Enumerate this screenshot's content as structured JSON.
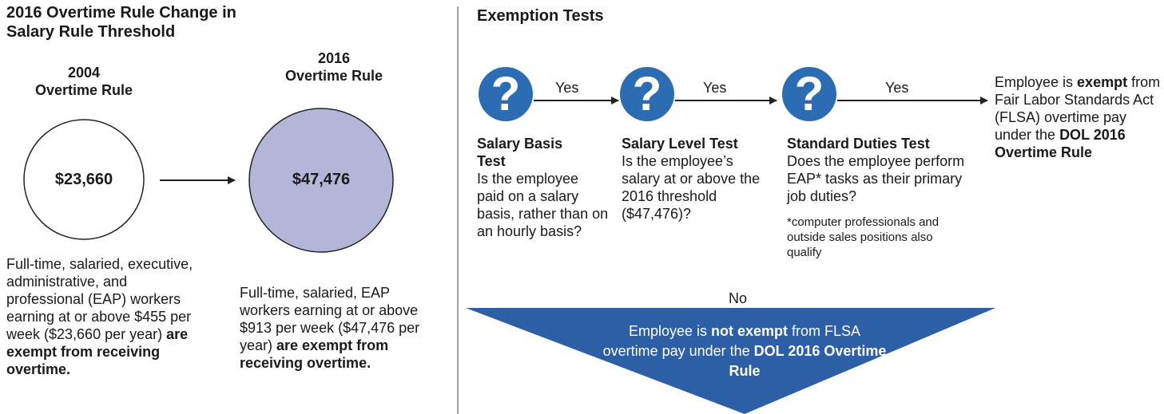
{
  "left": {
    "title": [
      "2016 Overtime Rule Change in",
      "Salary Rule Threshold"
    ],
    "rule_2004": {
      "year": "2004",
      "name": "Overtime Rule",
      "amount": "$23,660",
      "description": [
        {
          "text": "Full-time, salaried, executive, administrative, and professional (EAP) workers earning at or above $455 per week ($23,660 per year) ",
          "bold": false
        },
        {
          "text": "are exempt from receiving overtime.",
          "bold": true
        }
      ]
    },
    "rule_2016": {
      "year": "2016",
      "name": "Overtime Rule",
      "amount": "$47,476",
      "description": [
        {
          "text": "Full-time, salaried, EAP workers earning at or above $913 per week ($47,476 per year) ",
          "bold": false
        },
        {
          "text": "are exempt from receiving overtime.",
          "bold": true
        }
      ]
    }
  },
  "right": {
    "title": "Exemption Tests",
    "tests": [
      {
        "label": "Salary Basis Test",
        "question": "Is the employee paid on a salary basis, rather than on an hourly basis?",
        "arrow_label": "Yes"
      },
      {
        "label": "Salary Level Test",
        "question": "Is the employee’s salary at or above the 2016 threshold ($47,476)?",
        "arrow_label": "Yes"
      },
      {
        "label": "Standard Duties Test",
        "question": "Does the employee perform EAP* tasks as their primary job duties?",
        "arrow_label": "Yes",
        "footnote": "*computer professionals and outside sales positions also qualify"
      }
    ],
    "exempt_result": [
      {
        "text": "Employee is ",
        "bold": false
      },
      {
        "text": "exempt",
        "bold": true
      },
      {
        "text": " from Fair Labor Standards Act (FLSA) overtime pay under the ",
        "bold": false
      },
      {
        "text": "DOL 2016 Overtime Rule",
        "bold": true
      }
    ],
    "no_label": "No",
    "not_exempt_result": [
      {
        "text": "Employee is ",
        "bold": false
      },
      {
        "text": "not exempt",
        "bold": true
      },
      {
        "text": " from FLSA overtime pay under the ",
        "bold": false
      },
      {
        "text": "DOL 2016 Overtime Rule",
        "bold": true
      }
    ]
  }
}
